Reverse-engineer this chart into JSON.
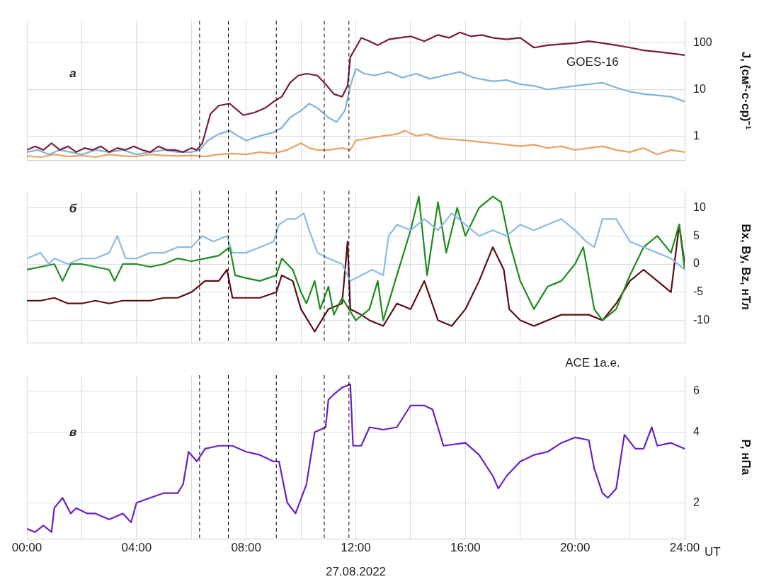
{
  "chart_data": [
    {
      "type": "line",
      "ylabel": "J, (см²·с·ср)⁻¹",
      "annotations": [
        "а",
        "GOES-16"
      ],
      "log": "y",
      "grid": true,
      "legend": false,
      "tick_labels": "y",
      "xlim": [
        0,
        24
      ],
      "xticks": [
        {
          "value": 0,
          "label": null
        },
        {
          "value": 2,
          "label": null
        },
        {
          "value": 4,
          "label": null
        },
        {
          "value": 6,
          "label": null
        },
        {
          "value": 8,
          "label": null
        },
        {
          "value": 10,
          "label": null
        },
        {
          "value": 12,
          "label": null
        },
        {
          "value": 14,
          "label": null
        },
        {
          "value": 16,
          "label": null
        },
        {
          "value": 18,
          "label": null
        },
        {
          "value": 20,
          "label": null
        },
        {
          "value": 22,
          "label": null
        },
        {
          "value": 24,
          "label": null
        }
      ],
      "ylim": [
        0.3,
        300
      ],
      "yticks": [
        1,
        10,
        100
      ],
      "ref_lines": [
        {
          "axis": "x",
          "value": 6.3,
          "color": "#000000",
          "line_style": "dashed"
        },
        {
          "axis": "x",
          "value": 7.35,
          "color": "#000000",
          "line_style": "dashed"
        },
        {
          "axis": "x",
          "value": 9.1,
          "color": "#000000",
          "line_style": "dashed"
        },
        {
          "axis": "x",
          "value": 10.85,
          "color": "#000000",
          "line_style": "dashed"
        },
        {
          "axis": "x",
          "value": 11.75,
          "color": "#000000",
          "line_style": "dashed"
        }
      ],
      "series": [
        {
          "color": "#7b1a3a",
          "x": [
            0,
            0.3,
            0.6,
            0.9,
            1.2,
            1.5,
            1.8,
            2.1,
            2.4,
            2.7,
            3.0,
            3.3,
            3.6,
            3.9,
            4.2,
            4.5,
            4.8,
            5.1,
            5.4,
            5.7,
            6.0,
            6.2,
            6.4,
            6.7,
            7.0,
            7.4,
            7.7,
            7.9,
            8.3,
            8.7,
            9.0,
            9.3,
            9.6,
            9.9,
            10.2,
            10.6,
            10.9,
            11.2,
            11.5,
            11.7,
            11.8,
            12.0,
            12.2,
            12.5,
            12.8,
            13.2,
            13.6,
            14.0,
            14.5,
            15.0,
            15.4,
            15.8,
            16.2,
            16.6,
            17.0,
            17.5,
            18.0,
            18.5,
            19.0,
            19.5,
            20.0,
            20.5,
            21.0,
            21.5,
            22.0,
            22.5,
            23.0,
            23.5,
            24
          ],
          "values": [
            0.5,
            0.6,
            0.5,
            0.7,
            0.5,
            0.6,
            0.45,
            0.55,
            0.5,
            0.6,
            0.45,
            0.55,
            0.5,
            0.6,
            0.5,
            0.45,
            0.6,
            0.5,
            0.5,
            0.45,
            0.55,
            0.5,
            0.7,
            3,
            4.5,
            5,
            3.5,
            2.8,
            3.2,
            4,
            5.5,
            7,
            14,
            20,
            22,
            20,
            13,
            8,
            7,
            12,
            50,
            80,
            130,
            110,
            90,
            120,
            130,
            140,
            110,
            150,
            130,
            170,
            140,
            150,
            130,
            120,
            130,
            80,
            90,
            95,
            100,
            110,
            100,
            90,
            80,
            70,
            65,
            60,
            55
          ]
        },
        {
          "color": "#7fb2da",
          "x": [
            0,
            0.4,
            0.8,
            1.2,
            1.6,
            2.0,
            2.5,
            3.0,
            3.5,
            4.0,
            4.5,
            5.0,
            5.5,
            6.0,
            6.3,
            6.6,
            7.0,
            7.4,
            7.7,
            8.0,
            8.5,
            9.0,
            9.3,
            9.6,
            10.0,
            10.3,
            10.6,
            11.0,
            11.3,
            11.6,
            11.8,
            12.0,
            12.3,
            12.7,
            13.2,
            13.7,
            14.2,
            14.7,
            15.2,
            15.8,
            16.3,
            17.0,
            17.5,
            18.0,
            18.5,
            19.0,
            19.5,
            20.0,
            20.5,
            21.0,
            21.5,
            22.0,
            22.5,
            23.0,
            23.5,
            24
          ],
          "values": [
            0.45,
            0.5,
            0.4,
            0.5,
            0.45,
            0.4,
            0.5,
            0.45,
            0.5,
            0.4,
            0.45,
            0.5,
            0.45,
            0.45,
            0.5,
            0.8,
            1.1,
            1.3,
            1.0,
            0.8,
            1.0,
            1.2,
            1.5,
            2.5,
            3.5,
            5,
            4,
            2.5,
            2,
            3.5,
            12,
            28,
            22,
            20,
            24,
            18,
            22,
            17,
            20,
            24,
            18,
            15,
            16,
            13,
            12,
            10,
            11,
            12,
            13,
            14,
            11,
            9,
            8,
            7.5,
            7,
            5.5
          ]
        },
        {
          "color": "#e9a263",
          "x": [
            0,
            0.5,
            1.0,
            1.5,
            2.0,
            2.5,
            3.0,
            3.5,
            4.0,
            4.5,
            5.0,
            5.5,
            6.0,
            6.5,
            7.0,
            7.5,
            8.0,
            8.5,
            9.0,
            9.5,
            10.0,
            10.3,
            10.6,
            11.0,
            11.5,
            11.8,
            12.0,
            12.5,
            13.0,
            13.5,
            13.8,
            14.2,
            14.6,
            15.0,
            15.5,
            16.0,
            16.5,
            17.0,
            17.5,
            18.0,
            18.5,
            19.0,
            19.5,
            20.0,
            20.5,
            21.0,
            21.5,
            22.0,
            22.5,
            23.0,
            23.5,
            24
          ],
          "values": [
            0.37,
            0.35,
            0.4,
            0.36,
            0.38,
            0.35,
            0.4,
            0.37,
            0.36,
            0.4,
            0.38,
            0.37,
            0.38,
            0.36,
            0.4,
            0.42,
            0.4,
            0.45,
            0.42,
            0.5,
            0.7,
            0.55,
            0.5,
            0.5,
            0.55,
            0.5,
            0.8,
            0.9,
            1.0,
            1.1,
            1.3,
            1.0,
            1.1,
            0.9,
            0.85,
            0.8,
            0.75,
            0.7,
            0.65,
            0.6,
            0.65,
            0.55,
            0.6,
            0.5,
            0.55,
            0.6,
            0.5,
            0.45,
            0.55,
            0.4,
            0.5,
            0.45
          ]
        }
      ]
    },
    {
      "type": "line",
      "ylabel": "Bx, By, Bz, нТл",
      "annotations": [
        "б"
      ],
      "grid": true,
      "legend": false,
      "tick_labels": "y",
      "xlim": [
        0,
        24
      ],
      "xticks": [
        {
          "value": 0,
          "label": null
        },
        {
          "value": 2,
          "label": null
        },
        {
          "value": 4,
          "label": null
        },
        {
          "value": 6,
          "label": null
        },
        {
          "value": 8,
          "label": null
        },
        {
          "value": 10,
          "label": null
        },
        {
          "value": 12,
          "label": null
        },
        {
          "value": 14,
          "label": null
        },
        {
          "value": 16,
          "label": null
        },
        {
          "value": 18,
          "label": null
        },
        {
          "value": 20,
          "label": null
        },
        {
          "value": 22,
          "label": null
        },
        {
          "value": 24,
          "label": null
        }
      ],
      "ylim": [
        -14,
        13
      ],
      "yticks": [
        -10,
        -5,
        0,
        5,
        10
      ],
      "ref_lines": [
        {
          "axis": "x",
          "value": 6.3,
          "color": "#000000",
          "line_style": "dashed"
        },
        {
          "axis": "x",
          "value": 7.35,
          "color": "#000000",
          "line_style": "dashed"
        },
        {
          "axis": "x",
          "value": 9.1,
          "color": "#000000",
          "line_style": "dashed"
        },
        {
          "axis": "x",
          "value": 10.85,
          "color": "#000000",
          "line_style": "dashed"
        },
        {
          "axis": "x",
          "value": 11.75,
          "color": "#000000",
          "line_style": "dashed"
        }
      ],
      "series": [
        {
          "color": "#8bbbe3",
          "x": [
            0,
            0.5,
            0.8,
            1.0,
            1.5,
            2.0,
            2.5,
            3.0,
            3.3,
            3.6,
            4.0,
            4.5,
            5.0,
            5.5,
            6.0,
            6.4,
            6.8,
            7.3,
            7.5,
            8.0,
            8.5,
            9.0,
            9.2,
            9.5,
            9.8,
            10.1,
            10.3,
            10.6,
            11.0,
            11.5,
            11.8,
            12.2,
            12.6,
            13.0,
            13.2,
            13.5,
            14.0,
            14.5,
            15.0,
            15.5,
            16.0,
            16.5,
            17.0,
            17.5,
            18.0,
            18.5,
            19.0,
            19.5,
            20.0,
            20.4,
            20.7,
            21.0,
            21.5,
            22.0,
            22.5,
            23.0,
            23.5,
            24
          ],
          "values": [
            1,
            2,
            0,
            1,
            0,
            1,
            1,
            2,
            5,
            1,
            1,
            2,
            2,
            3,
            3,
            5,
            4,
            5,
            2,
            2,
            3,
            4,
            7,
            8,
            8,
            9,
            6,
            2,
            1,
            0,
            -3,
            -2,
            -1,
            -2,
            5,
            7,
            6,
            8,
            6,
            9,
            7,
            5,
            6,
            5,
            7,
            6,
            7,
            8,
            6,
            4,
            3,
            8,
            8,
            4,
            3,
            2,
            1,
            -1
          ]
        },
        {
          "color": "#1c8c1c",
          "x": [
            0,
            0.5,
            1.0,
            1.3,
            1.6,
            2.0,
            2.5,
            3.0,
            3.2,
            3.5,
            4.0,
            4.5,
            5.0,
            5.5,
            6.0,
            6.5,
            7.0,
            7.4,
            7.6,
            8.0,
            8.5,
            9.1,
            9.3,
            9.7,
            10.0,
            10.2,
            10.5,
            10.7,
            11.0,
            11.2,
            11.5,
            12.0,
            12.5,
            12.8,
            13.0,
            13.5,
            14.0,
            14.3,
            14.6,
            15.0,
            15.3,
            15.7,
            16.0,
            16.5,
            17.0,
            17.3,
            17.6,
            18.0,
            18.5,
            19.0,
            19.5,
            20.0,
            20.3,
            20.7,
            21.0,
            21.5,
            22.0,
            22.5,
            23.0,
            23.5,
            23.8,
            24
          ],
          "values": [
            -1,
            -0.5,
            0,
            -3,
            0,
            0,
            -0.5,
            -1,
            -3,
            0,
            0,
            -0.5,
            0,
            1,
            0.5,
            1,
            1.5,
            3,
            -2,
            -2.5,
            -3,
            -2,
            1,
            -1,
            -5,
            -7,
            -3,
            -8,
            -4,
            -9,
            -6,
            -10,
            -8,
            -3,
            -10,
            -2,
            6,
            12,
            -2,
            11,
            2,
            10,
            5,
            10,
            12,
            11,
            4,
            -3,
            -8,
            -4,
            -3,
            0,
            3,
            -8,
            -10,
            -8,
            -2,
            3,
            5,
            2,
            7,
            -1
          ]
        },
        {
          "color": "#5c0c14",
          "x": [
            0,
            0.5,
            1.0,
            1.5,
            2.0,
            2.5,
            3.0,
            3.5,
            4.0,
            4.5,
            5.0,
            5.5,
            6.0,
            6.5,
            7.0,
            7.3,
            7.5,
            8.0,
            8.5,
            9.1,
            9.3,
            9.7,
            10.0,
            10.5,
            11.0,
            11.5,
            11.7,
            11.8,
            12.2,
            12.5,
            13.0,
            13.5,
            14.0,
            14.5,
            15.0,
            15.5,
            16.0,
            16.5,
            17.0,
            17.4,
            17.6,
            18.0,
            18.5,
            19.0,
            19.5,
            20.0,
            20.5,
            21.0,
            21.5,
            22.0,
            22.5,
            23.0,
            23.5,
            23.8,
            24
          ],
          "values": [
            -6.5,
            -6.5,
            -6,
            -7,
            -7,
            -6.5,
            -7,
            -6.5,
            -6.5,
            -6.5,
            -6,
            -6,
            -5,
            -3,
            -3,
            -1,
            -6,
            -6,
            -6,
            -5,
            -2,
            -3,
            -8,
            -12,
            -8,
            -7,
            4,
            -8,
            -9,
            -10,
            -11,
            -7,
            -8,
            -3,
            -10,
            -11,
            -8,
            -3,
            3,
            -1,
            -8,
            -10,
            -11,
            -10,
            -9,
            -9,
            -9,
            -10,
            -7,
            -3,
            -1,
            -3,
            -5,
            7,
            0
          ]
        }
      ]
    },
    {
      "type": "line",
      "ylabel": "P, нПа",
      "xlabel": "UT",
      "annotations": [
        "в",
        "ACE 1а.е.",
        "27.08.2022"
      ],
      "log": "y",
      "grid": true,
      "legend": false,
      "xlim": [
        0,
        24
      ],
      "xticks": [
        {
          "value": 0,
          "label": "00:00"
        },
        {
          "value": 2,
          "label": null
        },
        {
          "value": 4,
          "label": "04:00"
        },
        {
          "value": 6,
          "label": null
        },
        {
          "value": 8,
          "label": "08:00"
        },
        {
          "value": 10,
          "label": null
        },
        {
          "value": 12,
          "label": "12:00"
        },
        {
          "value": 14,
          "label": null
        },
        {
          "value": 16,
          "label": "16:00"
        },
        {
          "value": 18,
          "label": null
        },
        {
          "value": 20,
          "label": "20:00"
        },
        {
          "value": 22,
          "label": null
        },
        {
          "value": 24,
          "label": "24:00"
        }
      ],
      "ylim": [
        1.4,
        7
      ],
      "yticks": [
        2,
        4,
        6
      ],
      "ref_lines": [
        {
          "axis": "x",
          "value": 6.3,
          "color": "#000000",
          "line_style": "dashed"
        },
        {
          "axis": "x",
          "value": 7.35,
          "color": "#000000",
          "line_style": "dashed"
        },
        {
          "axis": "x",
          "value": 9.1,
          "color": "#000000",
          "line_style": "dashed"
        },
        {
          "axis": "x",
          "value": 10.85,
          "color": "#000000",
          "line_style": "dashed"
        },
        {
          "axis": "x",
          "value": 11.75,
          "color": "#000000",
          "line_style": "dashed"
        }
      ],
      "series": [
        {
          "color": "#6a1fc9",
          "x": [
            0,
            0.3,
            0.6,
            0.9,
            1.0,
            1.3,
            1.6,
            1.8,
            2.2,
            2.5,
            3.0,
            3.5,
            3.8,
            4.0,
            4.5,
            5.0,
            5.5,
            5.7,
            5.9,
            6.2,
            6.5,
            7.0,
            7.5,
            8.0,
            8.5,
            9.0,
            9.2,
            9.5,
            9.8,
            10.2,
            10.5,
            10.9,
            11.0,
            11.2,
            11.5,
            11.8,
            11.9,
            12.2,
            12.5,
            13.0,
            13.5,
            14.0,
            14.5,
            14.8,
            15.2,
            16.0,
            16.5,
            17.0,
            17.2,
            17.5,
            18.0,
            18.5,
            19.0,
            19.5,
            20.0,
            20.5,
            20.7,
            21.0,
            21.2,
            21.5,
            21.8,
            22.2,
            22.5,
            22.8,
            23.0,
            23.5,
            24
          ],
          "values": [
            1.55,
            1.5,
            1.6,
            1.5,
            1.9,
            2.1,
            1.8,
            1.9,
            1.8,
            1.8,
            1.7,
            1.8,
            1.65,
            2.0,
            2.1,
            2.2,
            2.2,
            2.4,
            3.3,
            3.0,
            3.4,
            3.5,
            3.5,
            3.3,
            3.2,
            3.0,
            3.0,
            2.0,
            1.8,
            2.4,
            4.0,
            4.2,
            5.5,
            5.8,
            6.2,
            6.4,
            3.5,
            3.5,
            4.2,
            4.1,
            4.2,
            5.2,
            5.2,
            5.0,
            3.5,
            3.6,
            3.2,
            2.6,
            2.3,
            2.6,
            3.0,
            3.2,
            3.3,
            3.6,
            3.8,
            3.7,
            2.8,
            2.2,
            2.1,
            2.3,
            3.9,
            3.4,
            3.4,
            4.2,
            3.5,
            3.6,
            3.4
          ]
        }
      ]
    }
  ]
}
